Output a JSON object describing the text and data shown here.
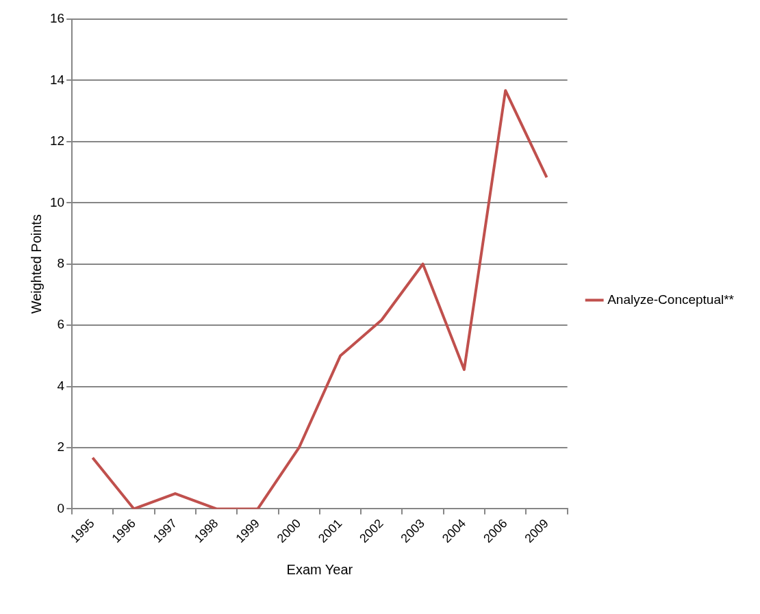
{
  "chart_data": {
    "type": "line",
    "xlabel": "Exam Year",
    "ylabel": "Weighted Points",
    "categories": [
      "1995",
      "1996",
      "1997",
      "1998",
      "1999",
      "2000",
      "2001",
      "2002",
      "2003",
      "2004",
      "2006",
      "2009"
    ],
    "series": [
      {
        "name": "Analyze-Conceptual**",
        "color": "#c0504d",
        "values": [
          1.67,
          0,
          0.5,
          0,
          0,
          2,
          5,
          6.17,
          8,
          4.55,
          13.67,
          10.83
        ]
      }
    ],
    "ylim": [
      0,
      16
    ],
    "yticks": [
      0,
      2,
      4,
      6,
      8,
      10,
      12,
      14,
      16
    ],
    "grid": "y",
    "legend": "right",
    "marker": "none",
    "line_style": "solid"
  }
}
